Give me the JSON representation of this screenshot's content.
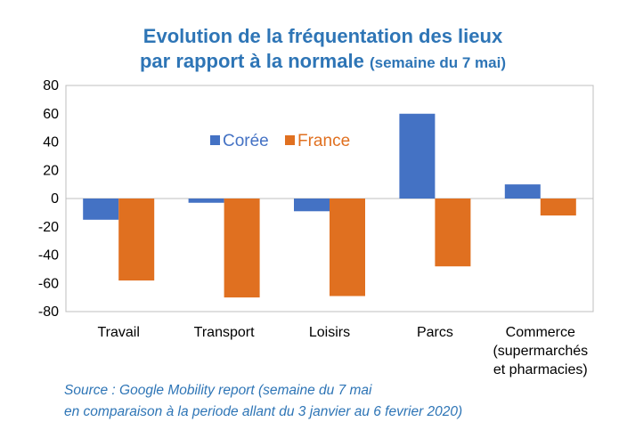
{
  "title": {
    "line1": "Evolution de la fréquentation des lieux",
    "line2_main": "par rapport à la normale",
    "line2_sub": "(semaine du 7 mai)"
  },
  "source": {
    "line1": "Source : Google Mobility report (semaine du 7 mai",
    "line2": "en comparaison à la periode allant du 3 janvier au 6 fevrier 2020)"
  },
  "chart_data": {
    "type": "bar",
    "categories": [
      [
        "Travail"
      ],
      [
        "Transport"
      ],
      [
        "Loisirs"
      ],
      [
        "Parcs"
      ],
      [
        "Commerce",
        "(supermarchés",
        "et pharmacies)"
      ]
    ],
    "series": [
      {
        "name": "Corée",
        "values": [
          -15,
          -3,
          -9,
          60,
          10
        ],
        "color": "#4472c4"
      },
      {
        "name": "France",
        "values": [
          -58,
          -70,
          -69,
          -48,
          -12
        ],
        "color": "#e07020"
      }
    ],
    "ylim": [
      -80,
      80
    ],
    "yticks": [
      80,
      60,
      40,
      20,
      0,
      -20,
      -40,
      -60,
      -80
    ],
    "legend_position": "top-center",
    "grid": false
  }
}
